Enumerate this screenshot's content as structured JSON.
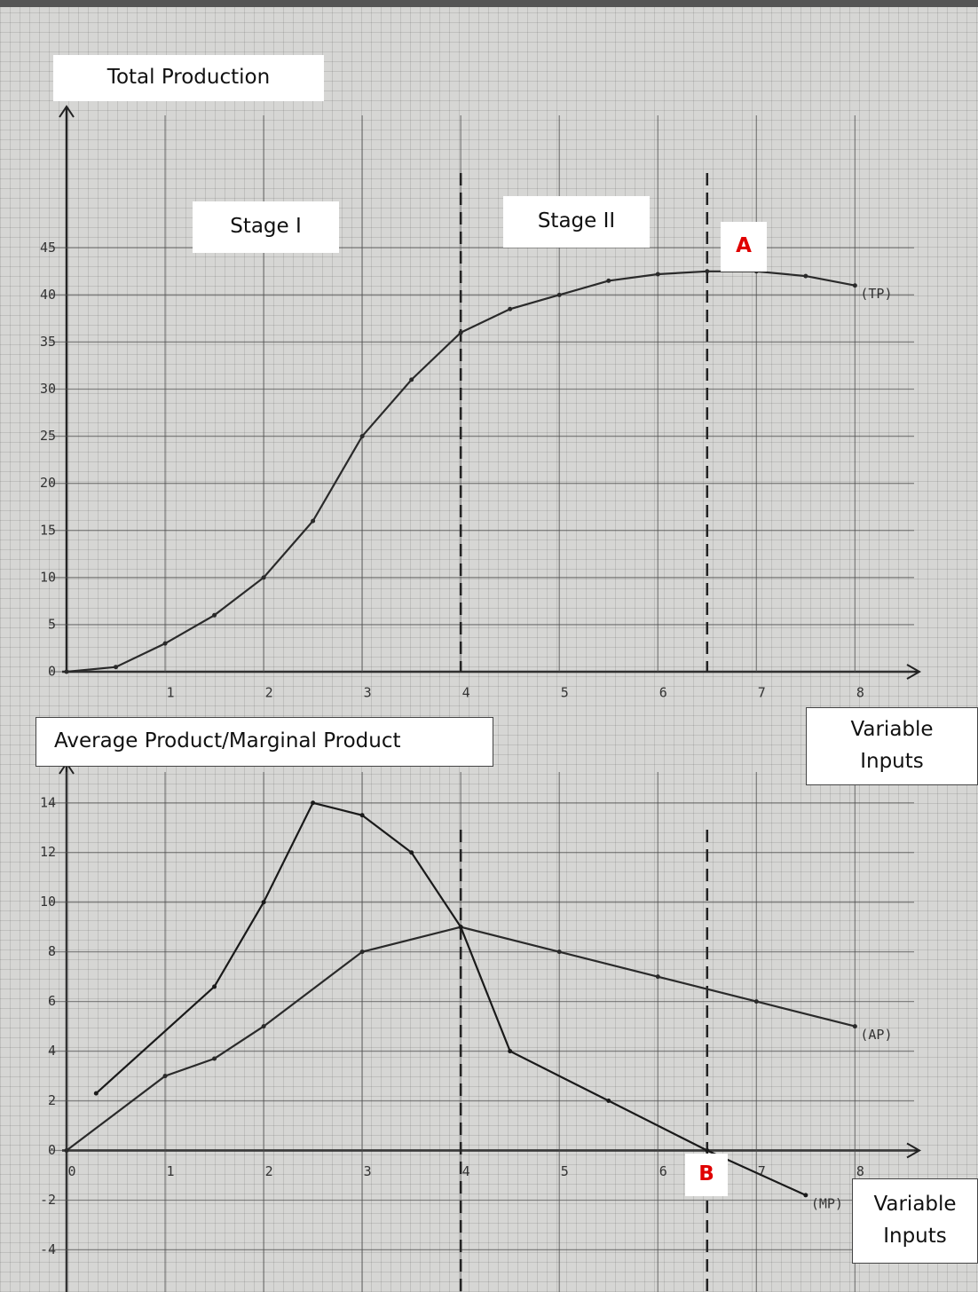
{
  "chart_data": [
    {
      "type": "line",
      "y_label": "Total Production",
      "x_label": "Variable Inputs",
      "annotations": [
        "Stage I",
        "Stage II",
        "A"
      ],
      "xlim": [
        0,
        8.6
      ],
      "ylim": [
        0,
        60
      ],
      "xticks": [
        1,
        2,
        3,
        4,
        5,
        6,
        7,
        8
      ],
      "yticks": [
        0,
        5,
        10,
        15,
        20,
        25,
        30,
        35,
        40,
        45
      ],
      "vlines": [
        4,
        6.5
      ],
      "series": [
        {
          "name": "(TP)",
          "color": "#2a2a2a",
          "x": [
            0,
            0.5,
            1,
            1.5,
            2,
            2.5,
            3,
            3.5,
            4,
            4.5,
            5,
            5.5,
            6,
            6.5,
            7,
            7.5,
            8
          ],
          "values": [
            0,
            0.5,
            3,
            6,
            10,
            16,
            25,
            31,
            36,
            38.5,
            40,
            41.5,
            42.2,
            42.5,
            42.5,
            42,
            41
          ]
        }
      ]
    },
    {
      "type": "line",
      "y_label": "Average Product/Marginal Product",
      "x_label": "Variable Inputs",
      "annotations": [
        "B"
      ],
      "xlim": [
        0,
        8.6
      ],
      "ylim": [
        -5.7,
        15.6
      ],
      "xticks": [
        0,
        1,
        2,
        3,
        4,
        5,
        6,
        7,
        8
      ],
      "yticks": [
        -4,
        -2,
        0,
        2,
        4,
        6,
        8,
        10,
        12,
        14
      ],
      "vlines": [
        4,
        6.5
      ],
      "series": [
        {
          "name": "(AP)",
          "color": "#2a2a2a",
          "x": [
            0,
            1,
            1.5,
            2,
            3,
            4,
            5,
            6,
            7,
            8
          ],
          "values": [
            0,
            3,
            3.7,
            5,
            8,
            9,
            8,
            7,
            6,
            5
          ]
        },
        {
          "name": "(MP)",
          "color": "#1a1a1a",
          "x": [
            0.3,
            1.5,
            2,
            2.5,
            3,
            3.5,
            4,
            4.5,
            5.5,
            6.5,
            7.5
          ],
          "values": [
            2.3,
            6.6,
            10,
            14,
            13.5,
            12,
            9,
            4,
            2,
            0,
            -1.8
          ]
        }
      ]
    }
  ]
}
